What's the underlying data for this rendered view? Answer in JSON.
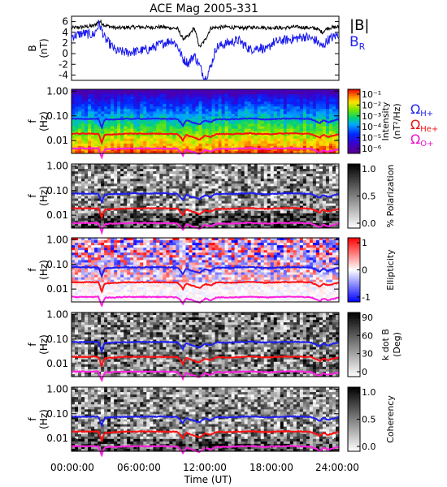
{
  "figure_title": "ACE Mag 2005-331",
  "x_axis": {
    "label": "Time (UT)",
    "ticks": [
      "00:00:00",
      "06:00:00",
      "12:00:00",
      "18:00:00",
      "24:00:00"
    ],
    "range_hours": [
      0,
      24
    ]
  },
  "gyro_legend": {
    "h": {
      "symbol": "Ω",
      "sub": "H+",
      "color": "#2222ee"
    },
    "he": {
      "symbol": "Ω",
      "sub": "He+",
      "color": "#ee1111"
    },
    "o": {
      "symbol": "Ω",
      "sub": "O+",
      "color": "#ee11cc"
    }
  },
  "colors": {
    "B_total": "#000000",
    "B_R": "#1a1aee",
    "H": "#1f1ff0",
    "He": "#ff1010",
    "O": "#ff20e0"
  },
  "chart_data": [
    {
      "type": "line",
      "ylabel": "B",
      "yunit": "(nT)",
      "ylim": [
        -5,
        7
      ],
      "yticks": [
        "6",
        "4",
        "2",
        "0",
        "-2",
        "-4"
      ],
      "ytick_values": [
        6,
        4,
        2,
        0,
        -2,
        -4
      ],
      "x_hours": [
        0,
        1,
        2,
        2.5,
        3,
        4,
        5,
        6,
        7,
        8,
        9,
        9.5,
        10,
        10.5,
        11,
        11.5,
        12,
        12.5,
        13,
        14,
        15,
        16,
        17,
        17.5,
        18,
        19,
        20,
        21,
        22,
        22.5,
        23,
        24
      ],
      "series": [
        {
          "name": "|B|",
          "values": [
            4.8,
            5.0,
            5.2,
            6.1,
            5.3,
            4.8,
            4.9,
            5.0,
            4.9,
            5.0,
            4.8,
            4.7,
            2.8,
            3.2,
            4.9,
            1.2,
            2.6,
            4.8,
            4.9,
            5.0,
            4.8,
            4.9,
            5.0,
            4.8,
            4.9,
            4.8,
            5.0,
            4.9,
            4.7,
            4.0,
            4.8,
            5.0
          ]
        },
        {
          "name": "B_R",
          "values": [
            3.2,
            3.8,
            3.5,
            5.6,
            2.8,
            0.5,
            0.2,
            0.5,
            0.8,
            1.8,
            2.5,
            1.5,
            -1.0,
            -1.8,
            -0.2,
            -2.3,
            -4.8,
            -2.4,
            1.2,
            2.0,
            2.5,
            0.8,
            1.2,
            0.5,
            2.0,
            2.5,
            2.8,
            3.2,
            2.4,
            1.2,
            2.6,
            3.6
          ]
        }
      ],
      "legend": [
        "|B|",
        "B_R"
      ]
    },
    {
      "type": "heatmap",
      "ylabel": "f",
      "yunit": "(Hz)",
      "log_y": true,
      "ylim": [
        0.003,
        1.2
      ],
      "yticks": [
        "1.00",
        "0.10",
        "0.01"
      ],
      "ytick_values": [
        1,
        0.1,
        0.01
      ],
      "colorbar": {
        "label": "Intensity",
        "unit": "(nT²/Hz)",
        "ticks": [
          "10⁻¹",
          "10⁻²",
          "10⁻³",
          "10⁻⁴",
          "10⁻⁵",
          "10⁻⁶"
        ],
        "scale": "rainbow"
      }
    },
    {
      "type": "heatmap",
      "ylabel": "f",
      "yunit": "(Hz)",
      "log_y": true,
      "ylim": [
        0.003,
        1.2
      ],
      "yticks": [
        "1.00",
        "0.10",
        "0.01"
      ],
      "ytick_values": [
        1,
        0.1,
        0.01
      ],
      "colorbar": {
        "label": "% Polarization",
        "ticks": [
          "1.0",
          "0.5",
          "0.0"
        ],
        "scale": "gray"
      }
    },
    {
      "type": "heatmap",
      "ylabel": "f",
      "yunit": "(Hz)",
      "log_y": true,
      "ylim": [
        0.003,
        1.2
      ],
      "yticks": [
        "1.00",
        "0.10",
        "0.01"
      ],
      "ytick_values": [
        1,
        0.1,
        0.01
      ],
      "colorbar": {
        "label": "Ellipticity",
        "ticks": [
          "1",
          "0",
          "-1"
        ],
        "scale": "bwr"
      }
    },
    {
      "type": "heatmap",
      "ylabel": "f",
      "yunit": "(Hz)",
      "log_y": true,
      "ylim": [
        0.003,
        1.2
      ],
      "yticks": [
        "1.00",
        "0.10",
        "0.01"
      ],
      "ytick_values": [
        1,
        0.1,
        0.01
      ],
      "colorbar": {
        "label": "k dot B",
        "unit": "(Deg)",
        "ticks": [
          "90",
          "60",
          "30",
          "0"
        ],
        "scale": "gray"
      }
    },
    {
      "type": "heatmap",
      "ylabel": "f",
      "yunit": "(Hz)",
      "log_y": true,
      "ylim": [
        0.003,
        1.2
      ],
      "yticks": [
        "1.00",
        "0.10",
        "0.01"
      ],
      "ytick_values": [
        1,
        0.1,
        0.01
      ],
      "colorbar": {
        "label": "Coherency",
        "ticks": [
          "1.0",
          "0.5",
          "0.0"
        ],
        "scale": "gray"
      }
    }
  ],
  "gyro_lines": {
    "x_hours": [
      0,
      2.4,
      2.7,
      3.0,
      5,
      8,
      9.5,
      10.0,
      10.3,
      10.8,
      11.5,
      12,
      12.5,
      13,
      14,
      16,
      17.5,
      18.5,
      20,
      21.5,
      22.3,
      22.6,
      23,
      24
    ],
    "H": [
      0.076,
      0.076,
      0.03,
      0.07,
      0.076,
      0.077,
      0.074,
      0.04,
      0.068,
      0.055,
      0.045,
      0.065,
      0.055,
      0.074,
      0.072,
      0.078,
      0.072,
      0.075,
      0.078,
      0.074,
      0.05,
      0.068,
      0.055,
      0.073
    ],
    "He": [
      0.019,
      0.019,
      0.0075,
      0.017,
      0.019,
      0.019,
      0.0185,
      0.01,
      0.017,
      0.014,
      0.011,
      0.016,
      0.014,
      0.0185,
      0.018,
      0.0195,
      0.018,
      0.019,
      0.0195,
      0.0185,
      0.0125,
      0.017,
      0.014,
      0.018
    ],
    "O": [
      0.0048,
      0.0048,
      0.0019,
      0.0044,
      0.0048,
      0.0048,
      0.0046,
      0.0025,
      0.0042,
      0.0035,
      0.0028,
      0.0041,
      0.0035,
      0.0046,
      0.0045,
      0.0049,
      0.0045,
      0.0048,
      0.0049,
      0.0046,
      0.0031,
      0.0042,
      0.0035,
      0.0045
    ]
  }
}
